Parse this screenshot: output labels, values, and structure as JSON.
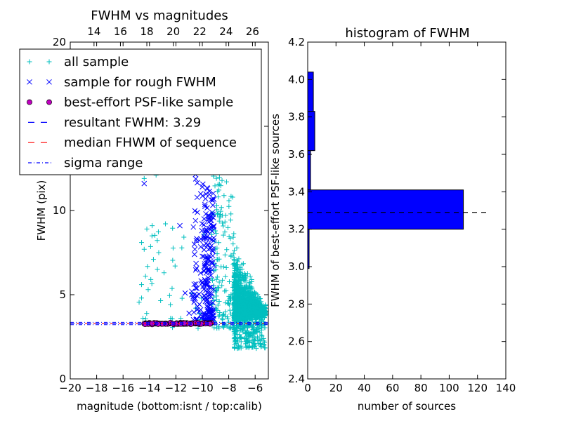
{
  "chart_data": [
    {
      "type": "scatter",
      "title": "FWHM vs magnitudes",
      "xlabel": "magnitude (bottom:isnt / top:calib)",
      "ylabel": "FWHM (pix)",
      "xlim": [
        -20,
        -5
      ],
      "ylim": [
        0,
        20
      ],
      "xticks": [
        -20,
        -18,
        -16,
        -14,
        -12,
        -10,
        -8,
        -6
      ],
      "xtick_labels": [
        "−20",
        "−18",
        "−16",
        "−14",
        "−12",
        "−10",
        "−8",
        "−6"
      ],
      "yticks": [
        0,
        5,
        10,
        15,
        20
      ],
      "ytick_labels": [
        "0",
        "5",
        "10",
        "15",
        "20"
      ],
      "top_axis": {
        "label_offset": 32.2,
        "ticks": [
          14,
          16,
          18,
          20,
          22,
          24,
          26
        ],
        "tick_labels": [
          "14",
          "16",
          "18",
          "20",
          "22",
          "24",
          "26"
        ]
      },
      "legend": {
        "position": "top-left",
        "entries": [
          {
            "label": "all sample",
            "marker": "plus",
            "color": "#00bfbf"
          },
          {
            "label": "sample for rough FWHM",
            "marker": "x",
            "color": "#0000ff"
          },
          {
            "label": "best-effort PSF-like sample",
            "marker": "circle",
            "color": "#bf00bf"
          },
          {
            "label": "resultant FWHM: 3.29",
            "line": "dashed",
            "color": "#0000ff"
          },
          {
            "label": "median FHWM of sequence",
            "line": "dashed",
            "color": "#ff0000"
          },
          {
            "label": "sigma range",
            "line": "dashdot",
            "color": "#0000ff"
          }
        ]
      },
      "lines": {
        "resultant": 3.29,
        "sigma_range": [
          3.22,
          3.36
        ]
      },
      "series": [
        {
          "name": "all sample",
          "marker": "plus",
          "color": "#00bfbf",
          "groups": [
            {
              "x": [
                -7.6,
                -5.2
              ],
              "y": [
                1.8,
                14.5
              ],
              "n": 1700
            },
            {
              "x": [
                -9.3,
                -7.6
              ],
              "y": [
                3.0,
                19.5
              ],
              "n": 220
            },
            {
              "x": [
                -14.8,
                -10.0
              ],
              "y": [
                3.0,
                9.5
              ],
              "n": 30
            }
          ],
          "points": [
            {
              "x": -14.6,
              "y": 8.1
            },
            {
              "x": -14.4,
              "y": 7.7
            },
            {
              "x": -14.3,
              "y": 6.1
            },
            {
              "x": -13.7,
              "y": 7.1
            },
            {
              "x": -13.4,
              "y": 6.5
            },
            {
              "x": -14.2,
              "y": 8.9
            },
            {
              "x": -13.8,
              "y": 9.1
            },
            {
              "x": -12.4,
              "y": 3.6
            },
            {
              "x": -10.5,
              "y": 4.2
            },
            {
              "x": -10.2,
              "y": 3.9
            },
            {
              "x": -14.5,
              "y": 3.6
            },
            {
              "x": -14.6,
              "y": 4.8
            },
            {
              "x": -13.3,
              "y": 7.5
            },
            {
              "x": -14.6,
              "y": 5.6
            },
            {
              "x": -14.4,
              "y": 11.9
            },
            {
              "x": -13.5,
              "y": 12.1
            },
            {
              "x": -9.9,
              "y": 8.6
            },
            {
              "x": -13.9,
              "y": 5.9
            },
            {
              "x": -14.1,
              "y": 5.3
            },
            {
              "x": -12.9,
              "y": 6.3
            }
          ]
        },
        {
          "name": "sample for rough FWHM",
          "marker": "x",
          "color": "#0000ff",
          "groups": [
            {
              "x": [
                -9.9,
                -9.1
              ],
              "y": [
                3.4,
                11.5
              ],
              "n": 170
            },
            {
              "x": [
                -10.7,
                -9.9
              ],
              "y": [
                3.5,
                12.5
              ],
              "n": 55
            }
          ],
          "points": [
            {
              "x": -14.4,
              "y": 11.6
            },
            {
              "x": -11.7,
              "y": 9.1
            },
            {
              "x": -11.3,
              "y": 5.1
            },
            {
              "x": -10.8,
              "y": 5.2
            },
            {
              "x": -10.8,
              "y": 5.0
            },
            {
              "x": -10.6,
              "y": 5.0
            },
            {
              "x": -11.0,
              "y": 3.9
            },
            {
              "x": -9.3,
              "y": 13.3
            },
            {
              "x": -9.6,
              "y": 11.3
            },
            {
              "x": -10.0,
              "y": 11.4
            }
          ]
        },
        {
          "name": "best-effort PSF-like sample",
          "marker": "circle",
          "color": "#bf00bf",
          "groups": [
            {
              "x": [
                -14.4,
                -9.3
              ],
              "y": [
                3.18,
                3.42
              ],
              "n": 100
            }
          ]
        }
      ]
    },
    {
      "type": "bar",
      "orientation": "horizontal",
      "title": "histogram of FWHM",
      "xlabel": "number of sources",
      "ylabel": "FWHM of best-effort PSF-like sources",
      "xlim": [
        0,
        140
      ],
      "ylim": [
        2.4,
        4.2
      ],
      "xticks": [
        0,
        20,
        40,
        60,
        80,
        100,
        120,
        140
      ],
      "yticks": [
        2.4,
        2.6,
        2.8,
        3.0,
        3.2,
        3.4,
        3.6,
        3.8,
        4.0,
        4.2
      ],
      "ytick_labels": [
        "2.4",
        "2.6",
        "2.8",
        "3.0",
        "3.2",
        "3.4",
        "3.6",
        "3.8",
        "4.0",
        "4.2"
      ],
      "bin_width": 0.21,
      "bins": [
        {
          "y0": 2.99,
          "value": 1
        },
        {
          "y0": 3.2,
          "value": 110
        },
        {
          "y0": 3.41,
          "value": 2
        },
        {
          "y0": 3.62,
          "value": 5
        },
        {
          "y0": 3.83,
          "value": 4
        }
      ],
      "bar_color": "#0000ff",
      "reference_line": {
        "y": 3.29,
        "x_end": 129,
        "style": "dashed",
        "color": "#000000"
      }
    }
  ]
}
